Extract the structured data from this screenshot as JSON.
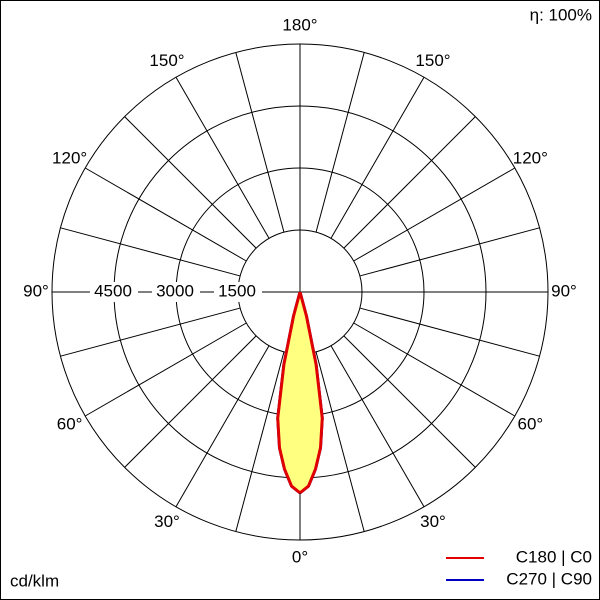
{
  "chart_data": {
    "type": "polar",
    "efficiency": "η: 100%",
    "unit_label": "cd/klm",
    "rlim": [
      0,
      6000
    ],
    "rticks": [
      1500,
      3000,
      4500
    ],
    "angleticks": [
      {
        "value": 0,
        "label": "0°"
      },
      {
        "value": 30,
        "label": "30°"
      },
      {
        "value": 60,
        "label": "60°"
      },
      {
        "value": 90,
        "label": "90°"
      },
      {
        "value": 120,
        "label": "120°"
      },
      {
        "value": 150,
        "label": "150°"
      },
      {
        "value": 180,
        "label": "180°"
      }
    ],
    "angle_step": 15,
    "fill": "#ffff80",
    "series": [
      {
        "name": "C270 | C90",
        "color": "#0000c0",
        "angles": [
          0,
          2.5,
          5,
          7.5,
          10,
          12.5,
          15,
          20
        ],
        "values": [
          4860,
          4700,
          4300,
          3800,
          3100,
          1800,
          600,
          0
        ]
      },
      {
        "name": "C180 | C0",
        "color": "#e00000",
        "angles": [
          0,
          2.5,
          5,
          7.5,
          10,
          12.5,
          15,
          20
        ],
        "values": [
          4860,
          4700,
          4300,
          3800,
          3100,
          1800,
          600,
          0
        ]
      }
    ]
  }
}
